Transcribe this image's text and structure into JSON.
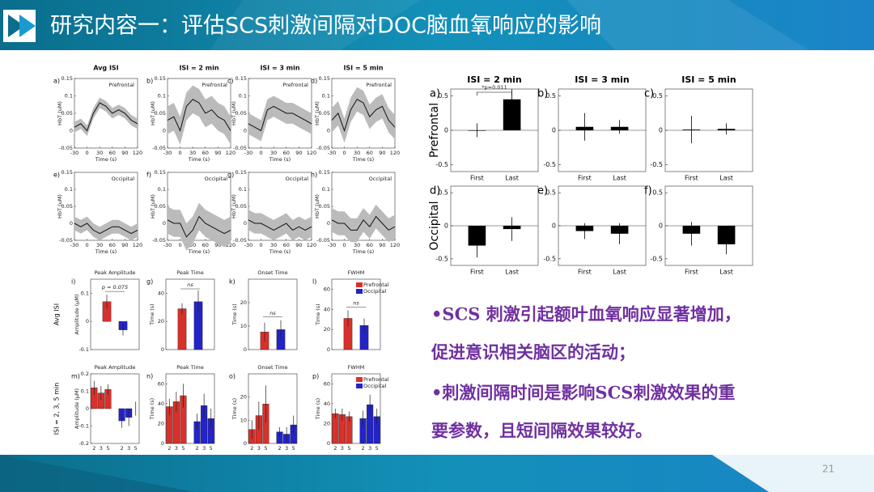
{
  "header": {
    "title": "研究内容一：评估SCS刺激间隔对DOC脑血氧响应的影响"
  },
  "slide_number": "21",
  "bullets": [
    "•SCS 刺激引起额叶血氧响应显著增加，",
    "促进意识相关脑区的活动；",
    "•刺激间隔时间是影响SCS刺激效果的重",
    "要参数，且短间隔效果较好。"
  ],
  "figure_left": {
    "columns": [
      "Avg ISI",
      "ISI = 2 min",
      "ISI = 3 min",
      "ISI = 5 min"
    ],
    "time_panels": {
      "x_label": "Time (s)",
      "y_label": "HbT (uM)",
      "xlim": [
        -30,
        120
      ],
      "ylim": [
        -0.05,
        0.15
      ],
      "xticks": [
        -30,
        0,
        30,
        60,
        90,
        120
      ],
      "yticks": [
        -0.05,
        0,
        0.05,
        0.1,
        0.15
      ],
      "x": [
        -30,
        -15,
        0,
        15,
        30,
        45,
        60,
        75,
        90,
        105,
        120
      ],
      "rows": [
        {
          "region": "Prefrontal",
          "panels": [
            {
              "letter": "a)",
              "values": [
                0.01,
                0.02,
                0.0,
                0.05,
                0.08,
                0.07,
                0.05,
                0.06,
                0.05,
                0.03,
                0.02
              ],
              "band": 0.015
            },
            {
              "letter": "b)",
              "values": [
                0.03,
                0.04,
                0.0,
                0.07,
                0.09,
                0.08,
                0.05,
                0.06,
                0.04,
                0.03,
                0.0
              ],
              "band": 0.04
            },
            {
              "letter": "c)",
              "values": [
                0.02,
                0.01,
                0.0,
                0.06,
                0.07,
                0.06,
                0.05,
                0.05,
                0.04,
                0.03,
                0.02
              ],
              "band": 0.03
            },
            {
              "letter": "d)",
              "values": [
                0.03,
                0.05,
                0.0,
                0.06,
                0.09,
                0.08,
                0.04,
                0.06,
                0.07,
                0.03,
                0.01
              ],
              "band": 0.035
            }
          ]
        },
        {
          "region": "Occipital",
          "panels": [
            {
              "letter": "e)",
              "values": [
                0.0,
                -0.01,
                0.0,
                -0.02,
                -0.03,
                -0.02,
                -0.01,
                -0.01,
                -0.02,
                -0.03,
                -0.02
              ],
              "band": 0.02
            },
            {
              "letter": "f)",
              "values": [
                0.01,
                0.0,
                0.0,
                -0.04,
                -0.02,
                0.02,
                0.0,
                -0.01,
                -0.02,
                -0.03,
                -0.02
              ],
              "band": 0.04
            },
            {
              "letter": "g)",
              "values": [
                0.01,
                0.0,
                0.0,
                -0.01,
                -0.02,
                -0.01,
                0.0,
                -0.02,
                -0.01,
                -0.02,
                -0.01
              ],
              "band": 0.03
            },
            {
              "letter": "h)",
              "values": [
                0.01,
                0.0,
                0.0,
                -0.02,
                -0.02,
                0.01,
                -0.01,
                0.02,
                0.0,
                -0.02,
                -0.01
              ],
              "band": 0.035
            }
          ]
        }
      ]
    },
    "bar_panels": {
      "series": [
        {
          "name": "Prefrontal",
          "color": "#d9302b"
        },
        {
          "name": "Occipital",
          "color": "#2323c8"
        }
      ],
      "categories": [
        "2",
        "3",
        "5",
        "2",
        "3",
        "5"
      ],
      "rows": [
        {
          "label": "Avg ISI",
          "panels": [
            {
              "letter": "i)",
              "title": "Peak Amplitude",
              "y_label": "Amplitude (µM)",
              "ylim": [
                -0.1,
                0.15
              ],
              "yticks": [
                -0.1,
                0,
                0.1
              ],
              "values": [
                0.07,
                -0.03
              ],
              "errors": [
                0.025,
                0.02
              ],
              "annotation": "p = 0.075"
            },
            {
              "letter": "g)",
              "title": "Peak Time",
              "y_label": "Time (s)",
              "ylim": [
                0,
                50
              ],
              "yticks": [
                0,
                20,
                40
              ],
              "values": [
                29,
                34
              ],
              "errors": [
                4,
                8
              ],
              "annotation": "ns"
            },
            {
              "letter": "k)",
              "title": "Onset Time",
              "y_label": "Time (s)",
              "ylim": [
                0,
                30
              ],
              "yticks": [
                0,
                10,
                20
              ],
              "values": [
                7.5,
                8.5
              ],
              "errors": [
                4,
                4
              ],
              "annotation": "ns"
            },
            {
              "letter": "l)",
              "title": "FWHM",
              "y_label": "Time (s)",
              "ylim": [
                0,
                70
              ],
              "yticks": [
                0,
                20,
                40,
                60
              ],
              "values": [
                31,
                24
              ],
              "errors": [
                8,
                7
              ],
              "annotation": "ns",
              "legend": true
            }
          ]
        },
        {
          "label": "ISI = 2, 3, 5 min",
          "panels": [
            {
              "letter": "m)",
              "title": "Peak Amplitude",
              "y_label": "Amplitude (µM)",
              "ylim": [
                -0.2,
                0.2
              ],
              "yticks": [
                -0.2,
                -0.1,
                0,
                0.1,
                0.2
              ],
              "values": [
                0.12,
                0.09,
                0.11,
                -0.07,
                -0.05,
                0.0
              ],
              "errors": [
                0.04,
                0.04,
                0.03,
                0.04,
                0.05,
                0.04
              ]
            },
            {
              "letter": "n)",
              "title": "Peak Time",
              "y_label": "Time (s)",
              "ylim": [
                0,
                70
              ],
              "yticks": [
                0,
                20,
                40,
                60
              ],
              "values": [
                37,
                42,
                48,
                22,
                38,
                25
              ],
              "errors": [
                8,
                10,
                12,
                8,
                12,
                10
              ]
            },
            {
              "letter": "o)",
              "title": "Onset Time",
              "y_label": "Time (s)",
              "ylim": [
                0,
                30
              ],
              "yticks": [
                0,
                10,
                20
              ],
              "values": [
                6,
                12,
                17,
                5,
                4,
                8
              ],
              "errors": [
                4,
                6,
                8,
                2,
                3,
                4
              ]
            },
            {
              "letter": "p)",
              "title": "FWHM",
              "y_label": "Time (s)",
              "ylim": [
                0,
                70
              ],
              "yticks": [
                0,
                20,
                40,
                60
              ],
              "values": [
                30,
                29,
                27,
                25,
                39,
                27
              ],
              "errors": [
                5,
                6,
                5,
                8,
                10,
                8
              ],
              "legend": true
            }
          ]
        }
      ]
    }
  },
  "figure_right": {
    "columns": [
      "ISI = 2 min",
      "ISI = 3 min",
      "ISI = 5 min"
    ],
    "categories": [
      "First",
      "Last"
    ],
    "ylim": [
      -0.6,
      0.6
    ],
    "yticks": [
      -0.5,
      0,
      0.5
    ],
    "rows": [
      {
        "region": "Prefrontal",
        "panels": [
          {
            "letter": "a)",
            "values": [
              0.0,
              0.45
            ],
            "errors": [
              0.1,
              0.15
            ],
            "annotation": "*p=0.011"
          },
          {
            "letter": "b)",
            "values": [
              0.05,
              0.05
            ],
            "errors": [
              0.2,
              0.1
            ]
          },
          {
            "letter": "c)",
            "values": [
              0.01,
              0.02
            ],
            "errors": [
              0.2,
              0.08
            ]
          }
        ]
      },
      {
        "region": "Occipital",
        "panels": [
          {
            "letter": "d)",
            "values": [
              -0.3,
              -0.05
            ],
            "errors": [
              0.18,
              0.18
            ]
          },
          {
            "letter": "e)",
            "values": [
              -0.08,
              -0.12
            ],
            "errors": [
              0.12,
              0.16
            ]
          },
          {
            "letter": "f)",
            "values": [
              -0.12,
              -0.28
            ],
            "errors": [
              0.18,
              0.15
            ]
          }
        ]
      }
    ]
  }
}
